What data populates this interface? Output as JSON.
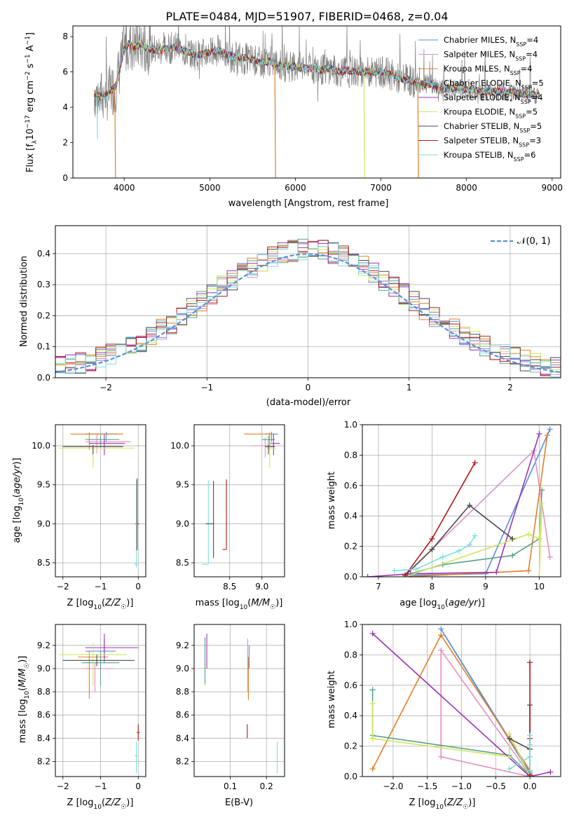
{
  "figure_title": "PLATE=0484, MJD=51907, FIBERID=0468, z=0.04",
  "colors": {
    "Chabrier MILES": "#5b8fd9",
    "Salpeter MILES": "#e78fbf",
    "Kroupa MILES": "#e08028",
    "Chabrier ELODIE": "#5aa08a",
    "Salpeter ELODIE": "#9a35b5",
    "Kroupa ELODIE": "#cde860",
    "Chabrier STELIB": "#4a4a4a",
    "Salpeter STELIB": "#b01818",
    "Kroupa STELIB": "#80dede",
    "data": "#808080",
    "normal": "#5b8fd9"
  },
  "legend_spectrum": [
    {
      "key": "Chabrier MILES",
      "label": "Chabrier MILES, N",
      "sub": "SSP",
      "suffix": "=4"
    },
    {
      "key": "Salpeter MILES",
      "label": "Salpeter MILES, N",
      "sub": "SSP",
      "suffix": "=4"
    },
    {
      "key": "Kroupa MILES",
      "label": "Kroupa MILES, N",
      "sub": "SSP",
      "suffix": "=4"
    },
    {
      "key": "Chabrier ELODIE",
      "label": "Chabrier ELODIE, N",
      "sub": "SSP",
      "suffix": "=5"
    },
    {
      "key": "Salpeter ELODIE",
      "label": "Salpeter ELODIE, N",
      "sub": "SSP",
      "suffix": "=4"
    },
    {
      "key": "Kroupa ELODIE",
      "label": "Kroupa ELODIE, N",
      "sub": "SSP",
      "suffix": "=5"
    },
    {
      "key": "Chabrier STELIB",
      "label": "Chabrier STELIB, N",
      "sub": "SSP",
      "suffix": "=5"
    },
    {
      "key": "Salpeter STELIB",
      "label": "Salpeter STELIB, N",
      "sub": "SSP",
      "suffix": "=3"
    },
    {
      "key": "Kroupa STELIB",
      "label": "Kroupa STELIB, N",
      "sub": "SSP",
      "suffix": "=6"
    }
  ],
  "legend_residual": "𝒩(0, 1)",
  "chart_data": [
    {
      "id": "spectrum",
      "type": "line",
      "xlabel": "wavelength [Angstrom, rest frame]",
      "ylabel": "Flux [f_λ 10^-17 erg cm^-2 s^-1 A^-1]",
      "xlim": [
        3400,
        9100
      ],
      "ylim": [
        0,
        8.6
      ],
      "xticks": [
        4000,
        5000,
        6000,
        7000,
        8000,
        9000
      ],
      "yticks": [
        0,
        2,
        4,
        6,
        8
      ],
      "continuum_x": [
        3650,
        3700,
        3800,
        3900,
        4000,
        4050,
        4100,
        4200,
        4300,
        4400,
        4500,
        4600,
        4700,
        4800,
        4900,
        5000,
        5100,
        5200,
        5300,
        5400,
        5500,
        5600,
        5700,
        5800,
        5900,
        6000,
        6100,
        6200,
        6300,
        6400,
        6500,
        6600,
        6700,
        6800,
        6900,
        7000,
        7100,
        7200,
        7300,
        7400,
        7500,
        7600,
        7700,
        7800,
        7900,
        8000,
        8200,
        8400,
        8600,
        8800
      ],
      "continuum_y": [
        4.8,
        4.6,
        4.7,
        5.2,
        7.3,
        7.6,
        7.4,
        7.5,
        7.3,
        7.2,
        7.3,
        7.4,
        7.2,
        7.0,
        7.0,
        7.1,
        7.2,
        7.0,
        6.8,
        6.8,
        6.7,
        6.5,
        6.6,
        6.4,
        6.3,
        6.3,
        6.2,
        6.2,
        6.1,
        6.2,
        6.0,
        6.1,
        6.0,
        6.0,
        6.0,
        6.0,
        5.9,
        5.6,
        5.6,
        5.4,
        5.3,
        5.3,
        5.0,
        5.1,
        5.0,
        5.0,
        4.9,
        4.9,
        4.8,
        4.7
      ],
      "dips": [
        {
          "key": "Kroupa STELIB",
          "x": 3680,
          "y": 2.2
        },
        {
          "key": "Kroupa MILES",
          "x": 3890,
          "y": 0.0
        },
        {
          "key": "Kroupa MILES",
          "x": 5760,
          "y": 0.0
        },
        {
          "key": "Kroupa ELODIE",
          "x": 6800,
          "y": 0.0
        },
        {
          "key": "Kroupa MILES",
          "x": 7430,
          "y": 0.0
        }
      ]
    },
    {
      "id": "residuals",
      "type": "histogram",
      "xlabel": "(data-model)/error",
      "ylabel": "Normed distribution",
      "xlim": [
        -2.5,
        2.5
      ],
      "ylim": [
        0,
        0.49
      ],
      "xticks": [
        -2,
        -1,
        0,
        1,
        2
      ],
      "yticks": [
        0.0,
        0.1,
        0.2,
        0.3,
        0.4
      ],
      "bin_width": 0.1
    },
    {
      "id": "age_vs_Z",
      "type": "errorbar",
      "xlabel": "Z [log10(Z/Z☉)]",
      "ylabel": "age [log10(age/yr)]",
      "xlim": [
        -2.2,
        0.2
      ],
      "ylim": [
        8.32,
        10.27
      ],
      "xticks": [
        -2,
        -1,
        0
      ],
      "yticks": [
        8.5,
        9.0,
        9.5,
        10.0
      ],
      "points": [
        {
          "key": "Chabrier MILES",
          "x": -0.85,
          "y": 10.15,
          "xerr": [
            0.55,
            0.3
          ],
          "yerr": [
            0.1,
            0.03
          ]
        },
        {
          "key": "Salpeter MILES",
          "x": -1.1,
          "y": 10.05,
          "xerr": [
            0.3,
            0.9
          ],
          "yerr": [
            0.15,
            0.1
          ]
        },
        {
          "key": "Kroupa MILES",
          "x": -1.3,
          "y": 10.15,
          "xerr": [
            0.5,
            0.9
          ],
          "yerr": [
            0.2,
            0.02
          ]
        },
        {
          "key": "Chabrier ELODIE",
          "x": -1.0,
          "y": 10.08,
          "xerr": [
            0.4,
            0.5
          ],
          "yerr": [
            0.1,
            0.05
          ]
        },
        {
          "key": "Salpeter ELODIE",
          "x": -0.9,
          "y": 10.03,
          "xerr": [
            0.4,
            0.55
          ],
          "yerr": [
            0.15,
            0.12
          ]
        },
        {
          "key": "Kroupa ELODIE",
          "x": -1.2,
          "y": 9.97,
          "xerr": [
            0.9,
            1.1
          ],
          "yerr": [
            0.25,
            0.03
          ]
        },
        {
          "key": "Chabrier STELIB",
          "x": -1.2,
          "y": 9.99,
          "xerr": [
            0.8,
            0.8
          ],
          "yerr": [
            0.1,
            0.02
          ]
        },
        {
          "key": "Salpeter STELIB",
          "x": -0.03,
          "y": 9.0,
          "xerr": [
            0.05,
            0.05
          ],
          "yerr": [
            0.34,
            0.58
          ]
        },
        {
          "key": "Kroupa STELIB",
          "x": -0.05,
          "y": 8.48,
          "xerr": [
            0.05,
            0.06
          ],
          "yerr": [
            0.04,
            1.08
          ]
        }
      ]
    },
    {
      "id": "age_vs_mass",
      "type": "errorbar",
      "xlabel": "mass [log10(M/M☉)]",
      "ylabel": "",
      "xlim": [
        7.95,
        9.35
      ],
      "ylim": [
        8.32,
        10.27
      ],
      "xticks": [
        8.5,
        9.0
      ],
      "yticks": [
        8.5,
        9.0,
        9.5,
        10.0
      ],
      "points": [
        {
          "key": "Chabrier MILES",
          "x": 9.15,
          "y": 10.15,
          "xerr": [
            0.1,
            0.1
          ],
          "yerr": [
            0.1,
            0.03
          ]
        },
        {
          "key": "Salpeter MILES",
          "x": 9.05,
          "y": 10.0,
          "xerr": [
            0.2,
            0.05
          ],
          "yerr": [
            0.15,
            0.1
          ]
        },
        {
          "key": "Kroupa MILES",
          "x": 9.12,
          "y": 10.15,
          "xerr": [
            0.4,
            0.05
          ],
          "yerr": [
            0.2,
            0.02
          ]
        },
        {
          "key": "Chabrier ELODIE",
          "x": 9.1,
          "y": 10.08,
          "xerr": [
            0.1,
            0.1
          ],
          "yerr": [
            0.1,
            0.05
          ]
        },
        {
          "key": "Salpeter ELODIE",
          "x": 9.18,
          "y": 10.03,
          "xerr": [
            0.05,
            0.1
          ],
          "yerr": [
            0.15,
            0.12
          ]
        },
        {
          "key": "Kroupa ELODIE",
          "x": 9.12,
          "y": 9.97,
          "xerr": [
            0.05,
            0.1
          ],
          "yerr": [
            0.25,
            0.03
          ]
        },
        {
          "key": "Chabrier STELIB",
          "x": 9.1,
          "y": 9.99,
          "xerr": [
            0.05,
            0.1
          ],
          "yerr": [
            0.1,
            0.02
          ]
        },
        {
          "key": "Salpeter STELIB",
          "x": 8.45,
          "y": 8.67,
          "xerr": [
            0.06,
            0.0
          ],
          "yerr": [
            0.0,
            0.9
          ]
        },
        {
          "key": "Kroupa STELIB",
          "x": 8.17,
          "y": 8.48,
          "xerr": [
            0.1,
            0.0
          ],
          "yerr": [
            0.0,
            1.08
          ]
        },
        {
          "key": "Chabrier STELIB",
          "x": 8.25,
          "y": 9.0,
          "xerr": [
            0.12,
            0.0
          ],
          "yerr": [
            0.44,
            0.55
          ]
        }
      ]
    },
    {
      "id": "mass_weight_vs_age",
      "type": "line",
      "xlabel": "age [log10(age/yr)]",
      "ylabel": "mass weight",
      "xlim": [
        6.7,
        10.4
      ],
      "ylim": [
        0,
        1.0
      ],
      "xticks": [
        7,
        8,
        9,
        10
      ],
      "yticks": [
        0.0,
        0.2,
        0.4,
        0.6,
        0.8,
        1.0
      ],
      "series": [
        {
          "key": "Chabrier MILES",
          "x": [
            7.5,
            9.0,
            10.2
          ],
          "y": [
            0.01,
            0.02,
            0.97
          ]
        },
        {
          "key": "Salpeter MILES",
          "x": [
            7.5,
            9.9,
            10.2
          ],
          "y": [
            0.01,
            0.83,
            0.13
          ]
        },
        {
          "key": "Kroupa MILES",
          "x": [
            7.5,
            9.8,
            10.15
          ],
          "y": [
            0.0,
            0.04,
            0.93
          ]
        },
        {
          "key": "Chabrier ELODIE",
          "x": [
            7.6,
            8.2,
            9.5,
            10.0,
            10.05
          ],
          "y": [
            0.02,
            0.08,
            0.14,
            0.25,
            0.57
          ]
        },
        {
          "key": "Salpeter ELODIE",
          "x": [
            6.8,
            7.6,
            9.2,
            10.0
          ],
          "y": [
            0.0,
            0.02,
            0.03,
            0.94
          ]
        },
        {
          "key": "Kroupa ELODIE",
          "x": [
            7.5,
            9.8,
            10.0,
            10.05,
            10.0
          ],
          "y": [
            0.0,
            0.28,
            0.25,
            0.48,
            0.0
          ]
        },
        {
          "key": "Chabrier STELIB",
          "x": [
            7.5,
            8.0,
            8.7,
            9.5
          ],
          "y": [
            0.01,
            0.18,
            0.47,
            0.25
          ]
        },
        {
          "key": "Salpeter STELIB",
          "x": [
            7.5,
            8.0,
            8.8
          ],
          "y": [
            0.01,
            0.25,
            0.75
          ]
        },
        {
          "key": "Kroupa STELIB",
          "x": [
            7.3,
            7.7,
            8.2,
            8.5,
            8.7,
            8.8
          ],
          "y": [
            0.04,
            0.05,
            0.13,
            0.17,
            0.21,
            0.27
          ]
        }
      ]
    },
    {
      "id": "mass_vs_Z",
      "type": "errorbar",
      "xlabel": "Z [log10(Z/Z☉)]",
      "ylabel": "mass [log10(M/M☉)]",
      "xlim": [
        -2.2,
        0.2
      ],
      "ylim": [
        8.07,
        9.38
      ],
      "xticks": [
        -2,
        -1,
        0
      ],
      "yticks": [
        8.2,
        8.4,
        8.6,
        8.8,
        9.0,
        9.2
      ],
      "points": [
        {
          "key": "Chabrier MILES",
          "x": -0.9,
          "y": 9.15,
          "xerr": [
            0.5,
            0.3
          ],
          "yerr": [
            0.1,
            0.1
          ]
        },
        {
          "key": "Salpeter MILES",
          "x": -1.15,
          "y": 9.0,
          "xerr": [
            0.3,
            0.5
          ],
          "yerr": [
            0.2,
            0.05
          ]
        },
        {
          "key": "Kroupa MILES",
          "x": -1.3,
          "y": 9.1,
          "xerr": [
            0.3,
            0.5
          ],
          "yerr": [
            0.36,
            0.05
          ]
        },
        {
          "key": "Chabrier ELODIE",
          "x": -1.0,
          "y": 9.05,
          "xerr": [
            0.5,
            0.5
          ],
          "yerr": [
            0.2,
            0.1
          ]
        },
        {
          "key": "Salpeter ELODIE",
          "x": -0.9,
          "y": 9.18,
          "xerr": [
            0.5,
            0.9
          ],
          "yerr": [
            0.1,
            0.12
          ]
        },
        {
          "key": "Kroupa ELODIE",
          "x": -1.2,
          "y": 9.12,
          "xerr": [
            0.9,
            0.9
          ],
          "yerr": [
            0.27,
            0.1
          ]
        },
        {
          "key": "Chabrier STELIB",
          "x": -1.1,
          "y": 9.07,
          "xerr": [
            0.9,
            1.0
          ],
          "yerr": [
            0.05,
            0.05
          ]
        },
        {
          "key": "Salpeter STELIB",
          "x": 0.0,
          "y": 8.45,
          "xerr": [
            0.04,
            0.04
          ],
          "yerr": [
            0.07,
            0.07
          ]
        },
        {
          "key": "Kroupa STELIB",
          "x": -0.05,
          "y": 8.25,
          "xerr": [
            0.05,
            0.05
          ],
          "yerr": [
            0.15,
            0.12
          ]
        }
      ]
    },
    {
      "id": "mass_vs_EBV",
      "type": "errorbar",
      "xlabel": "E(B-V)",
      "ylabel": "",
      "xlim": [
        0.0,
        0.25
      ],
      "ylim": [
        8.07,
        9.38
      ],
      "xticks": [
        0.1,
        0.2
      ],
      "yticks": [
        8.2,
        8.4,
        8.6,
        8.8,
        9.0,
        9.2
      ],
      "points": [
        {
          "key": "Kroupa ELODIE",
          "x": 0.03,
          "y": 9.05,
          "xerr": [
            0,
            0
          ],
          "yerr": [
            0.2,
            0.15
          ]
        },
        {
          "key": "Chabrier ELODIE",
          "x": 0.03,
          "y": 9.07,
          "xerr": [
            0,
            0
          ],
          "yerr": [
            0.2,
            0.2
          ]
        },
        {
          "key": "Salpeter ELODIE",
          "x": 0.035,
          "y": 9.15,
          "xerr": [
            0,
            0
          ],
          "yerr": [
            0.15,
            0.15
          ]
        },
        {
          "key": "Salpeter MILES",
          "x": 0.148,
          "y": 9.0,
          "xerr": [
            0,
            0
          ],
          "yerr": [
            0.2,
            0.26
          ]
        },
        {
          "key": "Kroupa MILES",
          "x": 0.15,
          "y": 8.95,
          "xerr": [
            0,
            0
          ],
          "yerr": [
            0.22,
            0.15
          ]
        },
        {
          "key": "Chabrier MILES",
          "x": 0.152,
          "y": 9.1,
          "xerr": [
            0,
            0
          ],
          "yerr": [
            0.1,
            0.1
          ]
        },
        {
          "key": "Salpeter STELIB",
          "x": 0.147,
          "y": 8.47,
          "xerr": [
            0,
            0
          ],
          "yerr": [
            0.07,
            0.05
          ]
        },
        {
          "key": "Kroupa STELIB",
          "x": 0.23,
          "y": 8.25,
          "xerr": [
            0,
            0
          ],
          "yerr": [
            0.15,
            0.12
          ]
        }
      ]
    },
    {
      "id": "mass_weight_vs_Z",
      "type": "line",
      "xlabel": "Z [log10(Z/Z☉)]",
      "ylabel": "mass weight",
      "xlim": [
        -2.45,
        0.45
      ],
      "ylim": [
        0,
        1.0
      ],
      "xticks": [
        -2.0,
        -1.5,
        -1.0,
        -0.5,
        0.0
      ],
      "yticks": [
        0.0,
        0.2,
        0.4,
        0.6,
        0.8,
        1.0
      ],
      "series": [
        {
          "key": "Chabrier MILES",
          "x": [
            0.0,
            -1.3,
            0.0,
            0.0
          ],
          "y": [
            0.02,
            0.97,
            0.03,
            0.0
          ]
        },
        {
          "key": "Salpeter MILES",
          "x": [
            0.0,
            -1.3,
            -1.3,
            0.0
          ],
          "y": [
            0.0,
            0.13,
            0.83,
            0.01
          ]
        },
        {
          "key": "Kroupa MILES",
          "x": [
            -2.3,
            -1.3,
            0.0,
            0.0
          ],
          "y": [
            0.05,
            0.93,
            0.04,
            0.0
          ]
        },
        {
          "key": "Chabrier ELODIE",
          "x": [
            -2.3,
            -2.3,
            -2.3,
            -0.3,
            0.0
          ],
          "y": [
            0.57,
            0.25,
            0.27,
            0.14,
            0.01
          ]
        },
        {
          "key": "Salpeter ELODIE",
          "x": [
            -2.3,
            0.0,
            0.3
          ],
          "y": [
            0.94,
            0.0,
            0.03
          ]
        },
        {
          "key": "Kroupa ELODIE",
          "x": [
            -2.3,
            -2.3,
            -0.3,
            -0.3,
            0.0
          ],
          "y": [
            0.48,
            0.25,
            0.13,
            0.28,
            0.0
          ]
        },
        {
          "key": "Chabrier STELIB",
          "x": [
            -0.3,
            0.0,
            0.0
          ],
          "y": [
            0.25,
            0.18,
            0.47
          ]
        },
        {
          "key": "Salpeter STELIB",
          "x": [
            0.0,
            0.0,
            0.0
          ],
          "y": [
            0.01,
            0.25,
            0.75
          ]
        },
        {
          "key": "Kroupa STELIB",
          "x": [
            -0.3,
            0.0,
            0.0,
            0.0,
            0.0
          ],
          "y": [
            0.05,
            0.13,
            0.27,
            0.21,
            0.04
          ]
        }
      ]
    }
  ]
}
